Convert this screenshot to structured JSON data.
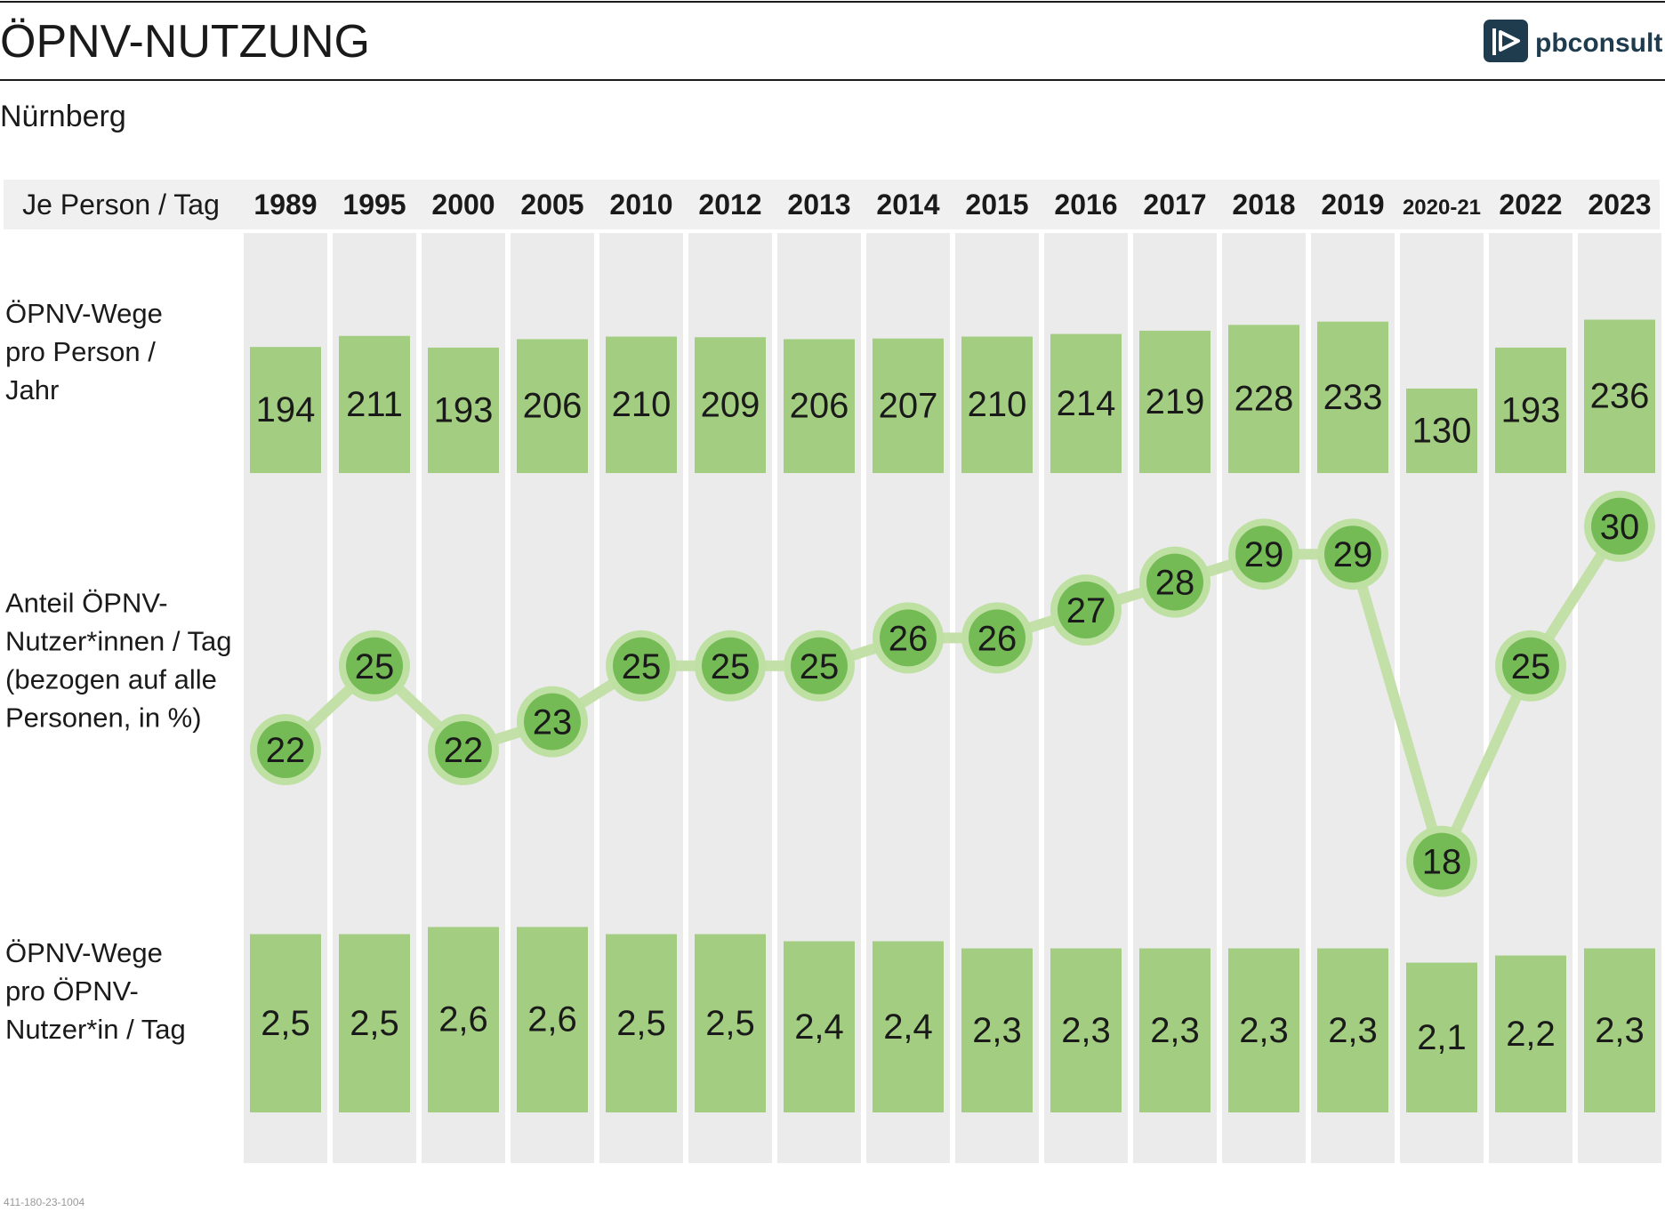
{
  "title": "ÖPNV-NUTZUNG",
  "subtitle": "Nürnberg",
  "logo_text": "pbconsult",
  "footer_code": "411-180-23-1004",
  "colors": {
    "bar": "#a3cd80",
    "column_bg": "#ebebeb",
    "header_bg": "#f0f0f0",
    "line": "#c4e0a9",
    "marker_ring": "#bfe0a3",
    "marker_core": "#74bb55",
    "logo": "#1f3c4f"
  },
  "chart_data": {
    "type": "table",
    "header_label": "Je Person / Tag",
    "categories": [
      "1989",
      "1995",
      "2000",
      "2005",
      "2010",
      "2012",
      "2013",
      "2014",
      "2015",
      "2016",
      "2017",
      "2018",
      "2019",
      "2020-21",
      "2022",
      "2023"
    ],
    "rows": [
      {
        "label_lines": [
          "ÖPNV-Wege",
          "pro Person /",
          "Jahr"
        ],
        "type": "bar",
        "values": [
          194,
          211,
          193,
          206,
          210,
          209,
          206,
          207,
          210,
          214,
          219,
          228,
          233,
          130,
          193,
          236
        ],
        "labels": [
          "194",
          "211",
          "193",
          "206",
          "210",
          "209",
          "206",
          "207",
          "210",
          "214",
          "219",
          "228",
          "233",
          "130",
          "193",
          "236"
        ]
      },
      {
        "label_lines": [
          "Anteil ÖPNV-",
          "Nutzer*innen / Tag",
          "(bezogen auf alle",
          "Personen, in %)"
        ],
        "type": "line",
        "values": [
          22,
          25,
          22,
          23,
          25,
          25,
          25,
          26,
          26,
          27,
          28,
          29,
          29,
          18,
          25,
          30
        ],
        "labels": [
          "22",
          "25",
          "22",
          "23",
          "25",
          "25",
          "25",
          "26",
          "26",
          "27",
          "28",
          "29",
          "29",
          "18",
          "25",
          "30"
        ]
      },
      {
        "label_lines": [
          "ÖPNV-Wege",
          "pro ÖPNV-",
          "Nutzer*in / Tag"
        ],
        "type": "bar",
        "values": [
          2.5,
          2.5,
          2.6,
          2.6,
          2.5,
          2.5,
          2.4,
          2.4,
          2.3,
          2.3,
          2.3,
          2.3,
          2.3,
          2.1,
          2.2,
          2.3
        ],
        "labels": [
          "2,5",
          "2,5",
          "2,6",
          "2,6",
          "2,5",
          "2,5",
          "2,4",
          "2,4",
          "2,3",
          "2,3",
          "2,3",
          "2,3",
          "2,3",
          "2,1",
          "2,2",
          "2,3"
        ]
      }
    ]
  }
}
